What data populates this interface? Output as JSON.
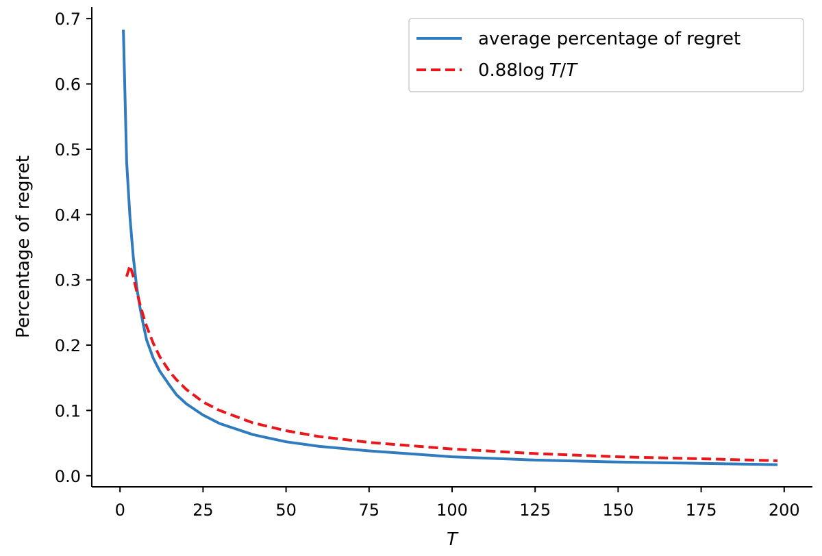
{
  "chart_data": {
    "type": "line",
    "title": "",
    "xlabel": "T",
    "ylabel": "Percentage of regret",
    "xlim": [
      -8.5,
      208.5
    ],
    "ylim": [
      -0.017,
      0.718
    ],
    "xticks": [
      0,
      25,
      50,
      75,
      100,
      125,
      150,
      175,
      200
    ],
    "xtick_labels": [
      "0",
      "25",
      "50",
      "75",
      "100",
      "125",
      "150",
      "175",
      "200"
    ],
    "yticks": [
      0.0,
      0.1,
      0.2,
      0.3,
      0.4,
      0.5,
      0.6,
      0.7
    ],
    "ytick_labels": [
      "0.0",
      "0.1",
      "0.2",
      "0.3",
      "0.4",
      "0.5",
      "0.6",
      "0.7"
    ],
    "legend_position": "top-right",
    "series": [
      {
        "name": "average percentage of regret",
        "style": "solid",
        "color": "#2f7bbd",
        "x": [
          1,
          2,
          3,
          4,
          5,
          6,
          7,
          8,
          10,
          12,
          15,
          17,
          20,
          25,
          30,
          40,
          50,
          60,
          75,
          100,
          125,
          150,
          175,
          198
        ],
        "y": [
          0.683,
          0.48,
          0.395,
          0.335,
          0.29,
          0.258,
          0.232,
          0.208,
          0.18,
          0.16,
          0.138,
          0.124,
          0.11,
          0.093,
          0.08,
          0.063,
          0.052,
          0.045,
          0.038,
          0.029,
          0.024,
          0.021,
          0.019,
          0.017
        ]
      },
      {
        "name": "0.88log T/T",
        "legend_main": "0.88log",
        "legend_var1": "T",
        "legend_slash": "/",
        "legend_var2": "T",
        "style": "dashed",
        "color": "#e8171c",
        "x": [
          2,
          3,
          4,
          5,
          6,
          7,
          8,
          10,
          12,
          15,
          17,
          20,
          25,
          30,
          40,
          50,
          60,
          75,
          100,
          125,
          150,
          175,
          198
        ],
        "y": [
          0.305,
          0.322,
          0.305,
          0.283,
          0.263,
          0.245,
          0.229,
          0.203,
          0.182,
          0.159,
          0.147,
          0.132,
          0.113,
          0.1,
          0.081,
          0.069,
          0.06,
          0.051,
          0.041,
          0.034,
          0.029,
          0.026,
          0.023
        ]
      }
    ]
  }
}
